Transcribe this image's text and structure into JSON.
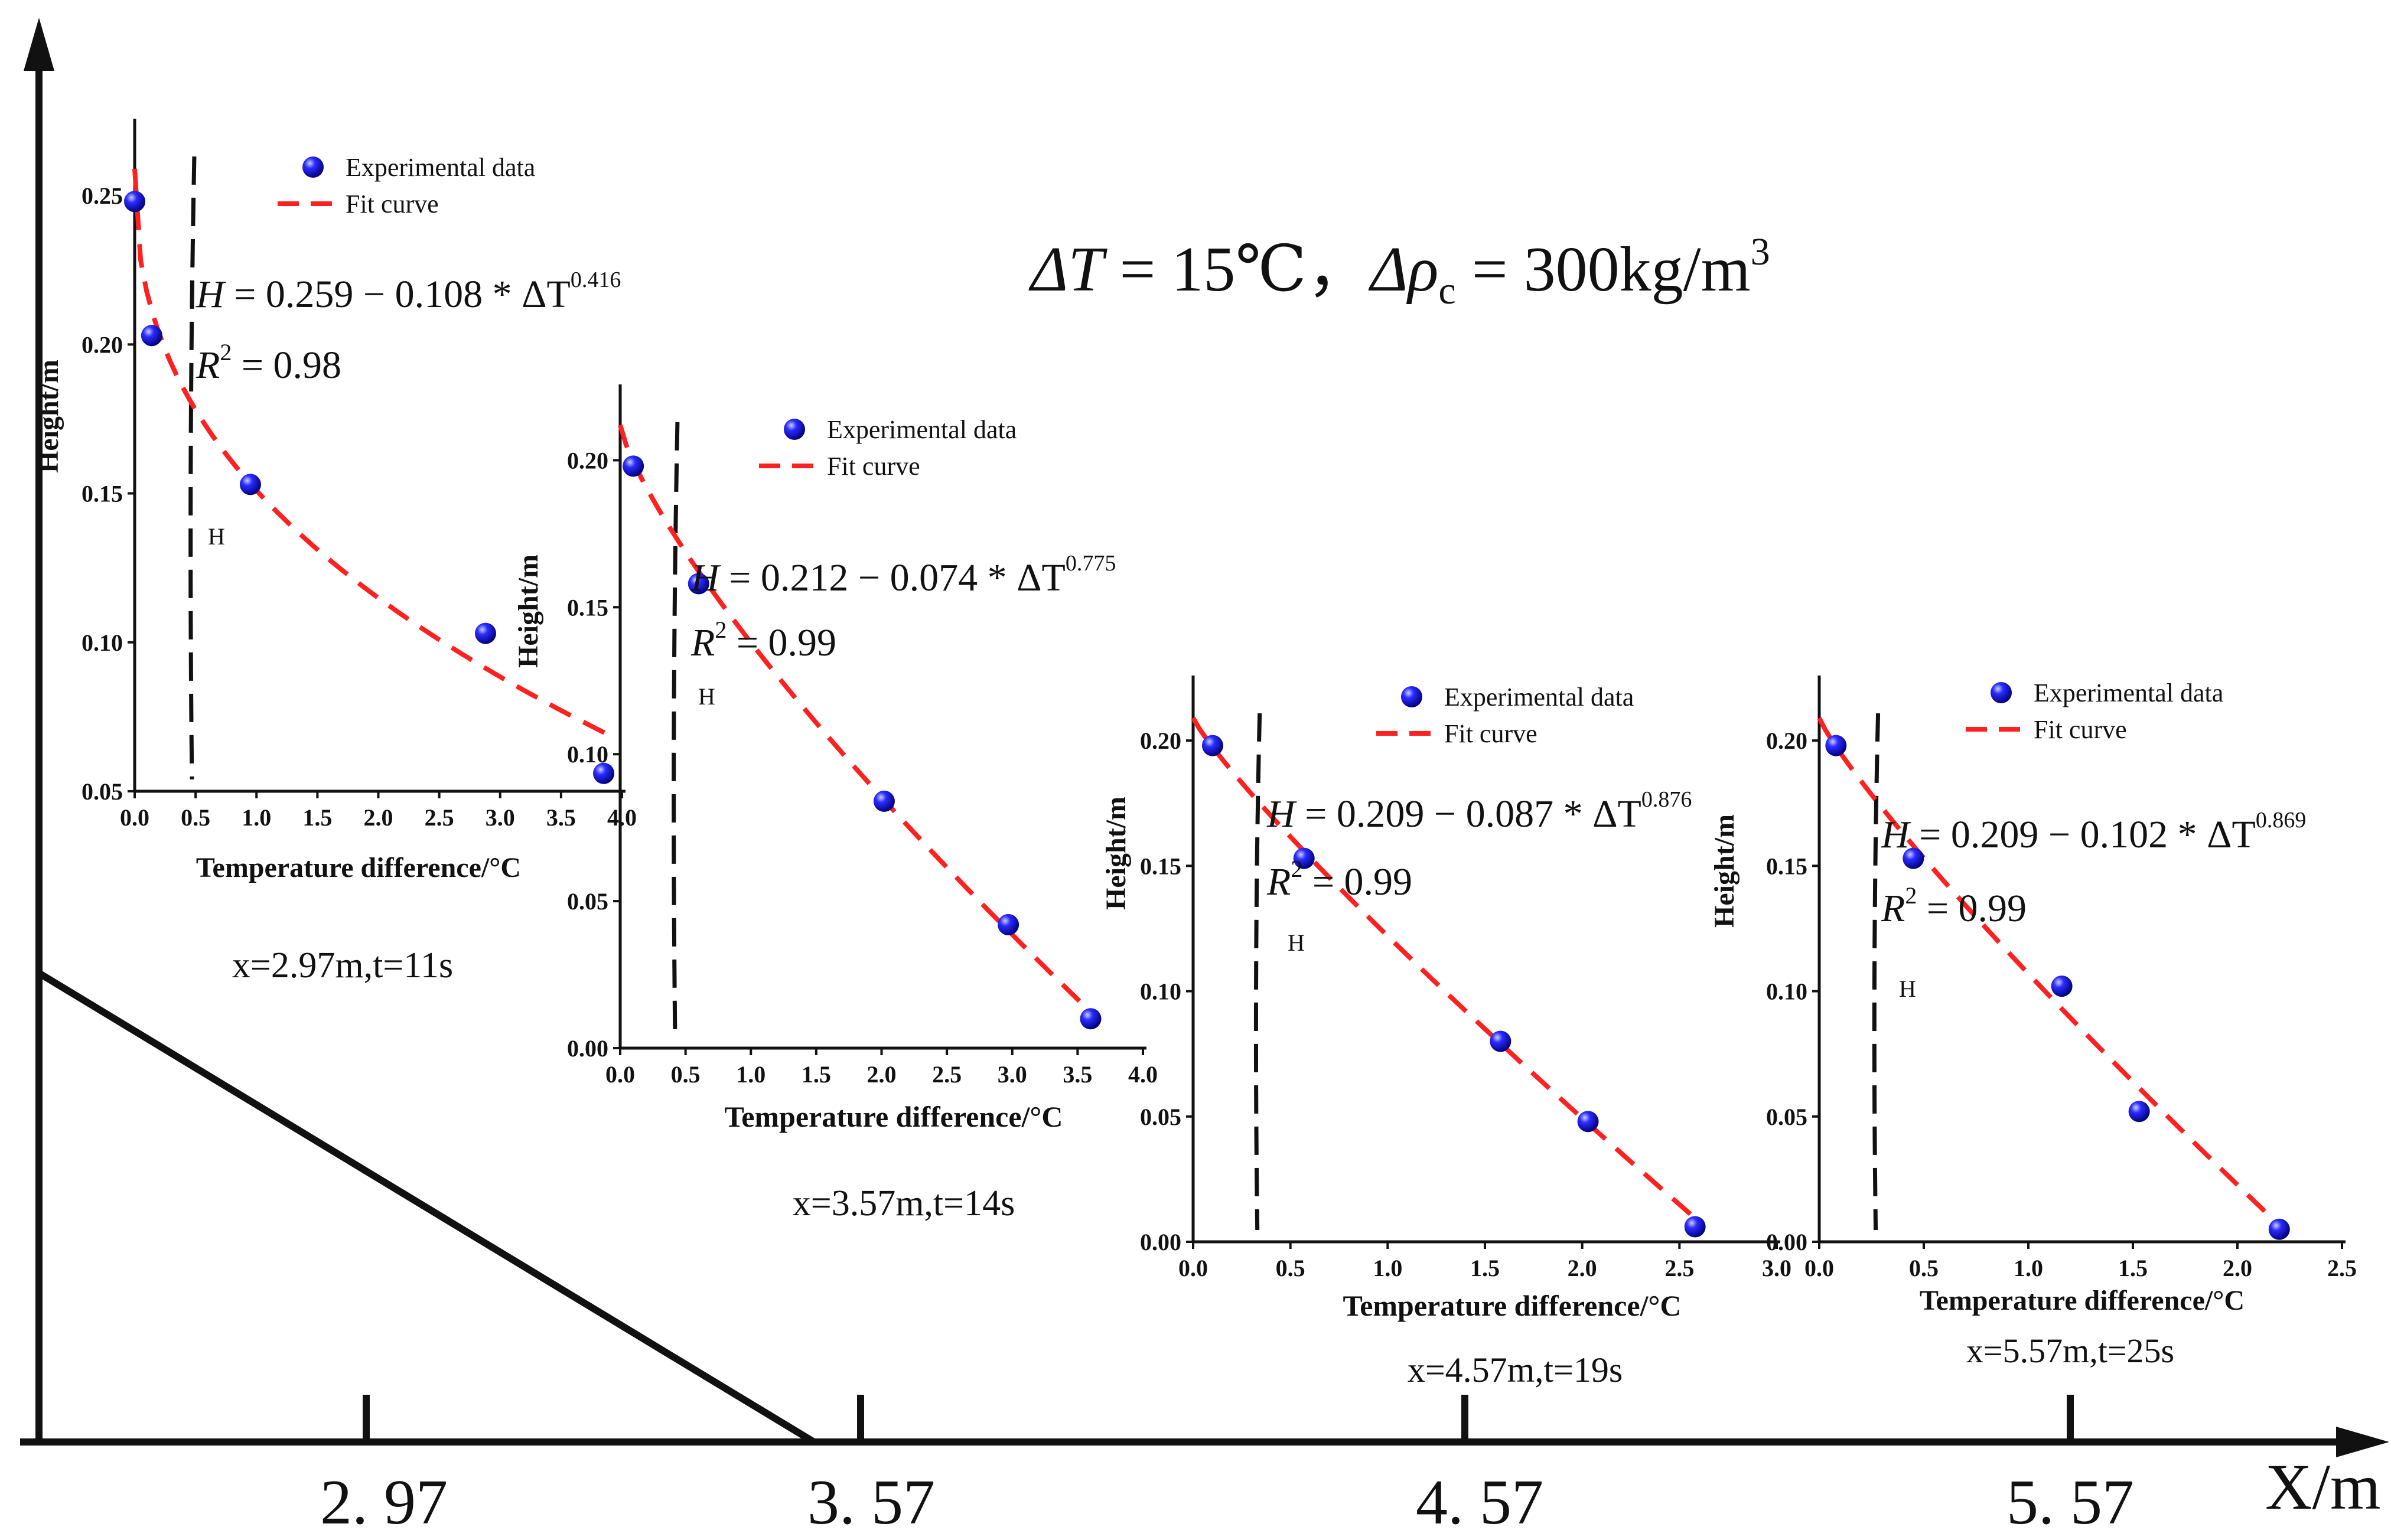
{
  "figure": {
    "condition_text": "ΔT = 15℃，Δρ꜀ = 300kg/m³",
    "condition_parts": {
      "dT_symbol": "ΔT",
      "dT_value": " = 15℃，",
      "drho_symbol": "Δρ",
      "drho_sub": "c",
      "drho_value": " = 300kg/m",
      "drho_sup": "3"
    },
    "main_axis": {
      "x_label": "X/m",
      "x_ticks": [
        "2. 97",
        "3. 57",
        "4. 57",
        "5. 57"
      ]
    }
  },
  "chart_data": [
    {
      "type": "scatter",
      "title": "",
      "caption": "x=2.97m,t=11s",
      "xlabel": "Temperature difference/°C",
      "ylabel": "Height/m",
      "xlim": [
        0.0,
        4.0
      ],
      "ylim": [
        0.05,
        0.275
      ],
      "x_ticks": [
        0.0,
        0.5,
        1.0,
        1.5,
        2.0,
        2.5,
        3.0,
        3.5,
        4.0
      ],
      "y_ticks": [
        0.05,
        0.1,
        0.15,
        0.2,
        0.25
      ],
      "x_tick_labels": [
        "0.0",
        "0.5",
        "1.0",
        "1.5",
        "2.0",
        "2.5",
        "3.0",
        "3.5",
        "4.0"
      ],
      "y_tick_labels": [
        "0.05",
        "0.10",
        "0.15",
        "0.20",
        "0.25"
      ],
      "series": [
        {
          "name": "Experimental data",
          "kind": "scatter",
          "x": [
            0.0,
            0.14,
            0.95,
            2.88,
            3.85
          ],
          "y": [
            0.248,
            0.203,
            0.153,
            0.103,
            0.056
          ]
        },
        {
          "name": "Fit curve",
          "kind": "dashed-line",
          "formula": {
            "a": 0.259,
            "b": 0.108,
            "n": 0.416
          },
          "x_range": [
            0.0,
            3.9
          ]
        }
      ],
      "legend": {
        "location": "top-right",
        "entries": [
          "Experimental data",
          "Fit curve"
        ]
      },
      "annotation": {
        "equation": {
          "lhs": "H",
          "rest": " = 0.259 − 0.108 * ΔT",
          "exp": "0.416"
        },
        "r2": {
          "r": "R",
          "sup": "2",
          "rest": " = 0.98"
        },
        "h_label": "H",
        "h_line_x": 0.47
      }
    },
    {
      "type": "scatter",
      "title": "",
      "caption": "x=3.57m,t=14s",
      "xlabel": "Temperature difference/°C",
      "ylabel": "Height/m",
      "xlim": [
        0.0,
        4.0
      ],
      "ylim": [
        0.0,
        0.225
      ],
      "x_ticks": [
        0.0,
        0.5,
        1.0,
        1.5,
        2.0,
        2.5,
        3.0,
        3.5,
        4.0
      ],
      "y_ticks": [
        0.0,
        0.05,
        0.1,
        0.15,
        0.2
      ],
      "x_tick_labels": [
        "0.0",
        "0.5",
        "1.0",
        "1.5",
        "2.0",
        "2.5",
        "3.0",
        "3.5",
        "4.0"
      ],
      "y_tick_labels": [
        "0.00",
        "0.05",
        "0.10",
        "0.15",
        "0.20"
      ],
      "series": [
        {
          "name": "Experimental data",
          "kind": "scatter",
          "x": [
            0.1,
            0.6,
            2.02,
            2.97,
            3.6
          ],
          "y": [
            0.198,
            0.158,
            0.084,
            0.042,
            0.01
          ]
        },
        {
          "name": "Fit curve",
          "kind": "dashed-line",
          "formula": {
            "a": 0.212,
            "b": 0.074,
            "n": 0.775
          },
          "x_range": [
            0.0,
            3.62
          ]
        }
      ],
      "legend": {
        "location": "top-right",
        "entries": [
          "Experimental data",
          "Fit curve"
        ]
      },
      "annotation": {
        "equation": {
          "lhs": "H",
          "rest": " = 0.212 − 0.074 * ΔT",
          "exp": "0.775"
        },
        "r2": {
          "r": "R",
          "sup": "2",
          "rest": " = 0.99"
        },
        "h_label": "H",
        "h_line_x": 0.42
      }
    },
    {
      "type": "scatter",
      "title": "",
      "caption": "x=4.57m,t=19s",
      "xlabel": "Temperature difference/°C",
      "ylabel": "Height/m",
      "xlim": [
        0.0,
        3.0
      ],
      "ylim": [
        0.0,
        0.225
      ],
      "x_ticks": [
        0.0,
        0.5,
        1.0,
        1.5,
        2.0,
        2.5,
        3.0
      ],
      "y_ticks": [
        0.0,
        0.05,
        0.1,
        0.15,
        0.2
      ],
      "x_tick_labels": [
        "0.0",
        "0.5",
        "1.0",
        "1.5",
        "2.0",
        "2.5",
        "3.0"
      ],
      "y_tick_labels": [
        "0.00",
        "0.05",
        "0.10",
        "0.15",
        "0.20"
      ],
      "series": [
        {
          "name": "Experimental data",
          "kind": "scatter",
          "x": [
            0.1,
            0.57,
            1.58,
            2.03,
            2.58
          ],
          "y": [
            0.198,
            0.153,
            0.08,
            0.048,
            0.006
          ]
        },
        {
          "name": "Fit curve",
          "kind": "dashed-line",
          "formula": {
            "a": 0.209,
            "b": 0.087,
            "n": 0.876
          },
          "x_range": [
            0.0,
            2.6
          ]
        }
      ],
      "legend": {
        "location": "top-right",
        "entries": [
          "Experimental data",
          "Fit curve"
        ]
      },
      "annotation": {
        "equation": {
          "lhs": "H",
          "rest": " = 0.209 − 0.087 * ΔT",
          "exp": "0.876"
        },
        "r2": {
          "r": "R",
          "sup": "2",
          "rest": " = 0.99"
        },
        "h_label": "H",
        "h_line_x": 0.33
      }
    },
    {
      "type": "scatter",
      "title": "",
      "caption": "x=5.57m,t=25s",
      "xlabel": "Temperature difference/°C",
      "ylabel": "Height/m",
      "xlim": [
        0.0,
        2.5
      ],
      "ylim": [
        0.0,
        0.225
      ],
      "x_ticks": [
        0.0,
        0.5,
        1.0,
        1.5,
        2.0,
        2.5
      ],
      "y_ticks": [
        0.0,
        0.05,
        0.1,
        0.15,
        0.2
      ],
      "x_tick_labels": [
        "0.0",
        "0.5",
        "1.0",
        "1.5",
        "2.0",
        "2.5"
      ],
      "y_tick_labels": [
        "0.00",
        "0.05",
        "0.10",
        "0.15",
        "0.20"
      ],
      "series": [
        {
          "name": "Experimental data",
          "kind": "scatter",
          "x": [
            0.08,
            0.45,
            1.16,
            1.53,
            2.2
          ],
          "y": [
            0.198,
            0.153,
            0.102,
            0.052,
            0.005
          ]
        },
        {
          "name": "Fit curve",
          "kind": "dashed-line",
          "formula": {
            "a": 0.209,
            "b": 0.102,
            "n": 0.869
          },
          "x_range": [
            0.0,
            2.22
          ]
        }
      ],
      "legend": {
        "location": "top-right",
        "entries": [
          "Experimental data",
          "Fit curve"
        ]
      },
      "annotation": {
        "equation": {
          "lhs": "H",
          "rest": " = 0.209 − 0.102 * ΔT",
          "exp": "0.869"
        },
        "r2": {
          "r": "R",
          "sup": "2",
          "rest": " = 0.99"
        },
        "h_label": "H",
        "h_line_x": 0.27
      }
    }
  ],
  "colors": {
    "point": "#1a1aff",
    "point_dark": "#00008a",
    "point_light": "#b8c4ff",
    "fit": "#ff2020",
    "axis": "#111111",
    "h_line": "#111111"
  }
}
